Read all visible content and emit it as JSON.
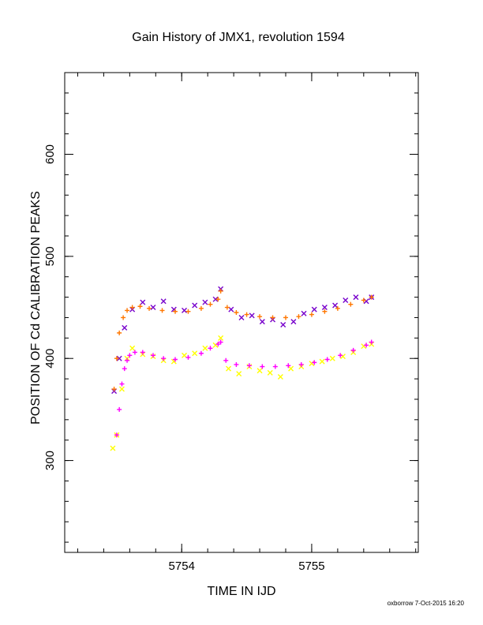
{
  "chart_data": {
    "type": "scatter",
    "title": "Gain History of JMX1, revolution 1594",
    "xlabel": "TIME IN IJD",
    "ylabel": "POSITION OF Cd CALIBRATION PEAKS",
    "xlim": [
      5753.1,
      5755.82
    ],
    "ylim": [
      210,
      680
    ],
    "x_ticks": [
      5754,
      5755
    ],
    "x_tick_labels": [
      "5754",
      "5755"
    ],
    "y_ticks": [
      300,
      400,
      500,
      600
    ],
    "y_tick_labels": [
      "300",
      "400",
      "500",
      "600"
    ],
    "grid": false,
    "series": [
      {
        "marker": "x",
        "color": "#7700cc",
        "x": [
          5753.48,
          5753.52,
          5753.56,
          5753.62,
          5753.7,
          5753.78,
          5753.86,
          5753.94,
          5754.02,
          5754.1,
          5754.18,
          5754.26,
          5754.3,
          5754.38,
          5754.46,
          5754.54,
          5754.62,
          5754.7,
          5754.78,
          5754.86,
          5754.94,
          5755.02,
          5755.1,
          5755.18,
          5755.26,
          5755.34,
          5755.42,
          5755.46
        ],
        "values": [
          368,
          400,
          430,
          448,
          455,
          450,
          456,
          448,
          447,
          452,
          455,
          458,
          468,
          448,
          440,
          442,
          436,
          438,
          433,
          436,
          444,
          448,
          450,
          452,
          457,
          460,
          456,
          460
        ]
      },
      {
        "marker": "+",
        "color": "#ff7700",
        "x": [
          5753.48,
          5753.5,
          5753.52,
          5753.55,
          5753.58,
          5753.62,
          5753.68,
          5753.75,
          5753.85,
          5753.95,
          5754.05,
          5754.15,
          5754.22,
          5754.28,
          5754.3,
          5754.35,
          5754.42,
          5754.5,
          5754.6,
          5754.7,
          5754.8,
          5754.9,
          5755.0,
          5755.1,
          5755.2,
          5755.3,
          5755.4,
          5755.46
        ],
        "values": [
          370,
          400,
          425,
          440,
          447,
          450,
          451,
          449,
          447,
          446,
          446,
          449,
          453,
          458,
          466,
          450,
          445,
          443,
          441,
          440,
          440,
          441,
          443,
          446,
          449,
          453,
          457,
          460
        ]
      },
      {
        "marker": "x",
        "color": "#ffff00",
        "x": [
          5753.47,
          5753.5,
          5753.54,
          5753.58,
          5753.62,
          5753.7,
          5753.78,
          5753.86,
          5753.94,
          5754.02,
          5754.1,
          5754.18,
          5754.26,
          5754.3,
          5754.36,
          5754.44,
          5754.52,
          5754.6,
          5754.68,
          5754.76,
          5754.84,
          5754.92,
          5755.0,
          5755.08,
          5755.16,
          5755.24,
          5755.32,
          5755.4,
          5755.46
        ],
        "values": [
          312,
          325,
          370,
          400,
          410,
          404,
          402,
          398,
          397,
          403,
          405,
          410,
          413,
          420,
          390,
          385,
          392,
          388,
          386,
          382,
          390,
          392,
          395,
          397,
          400,
          402,
          406,
          412,
          414
        ]
      },
      {
        "marker": "+",
        "color": "#ff00ff",
        "x": [
          5753.5,
          5753.52,
          5753.54,
          5753.56,
          5753.58,
          5753.6,
          5753.64,
          5753.7,
          5753.78,
          5753.86,
          5753.95,
          5754.05,
          5754.15,
          5754.22,
          5754.28,
          5754.3,
          5754.34,
          5754.42,
          5754.52,
          5754.62,
          5754.72,
          5754.82,
          5754.92,
          5755.02,
          5755.12,
          5755.22,
          5755.32,
          5755.42,
          5755.46
        ],
        "values": [
          325,
          350,
          375,
          390,
          398,
          403,
          406,
          406,
          403,
          400,
          399,
          401,
          405,
          410,
          414,
          416,
          398,
          394,
          393,
          392,
          392,
          393,
          394,
          396,
          399,
          403,
          408,
          413,
          416
        ]
      }
    ]
  },
  "footer": {
    "credit": "oxborrow  7-Oct-2015 16:20"
  }
}
